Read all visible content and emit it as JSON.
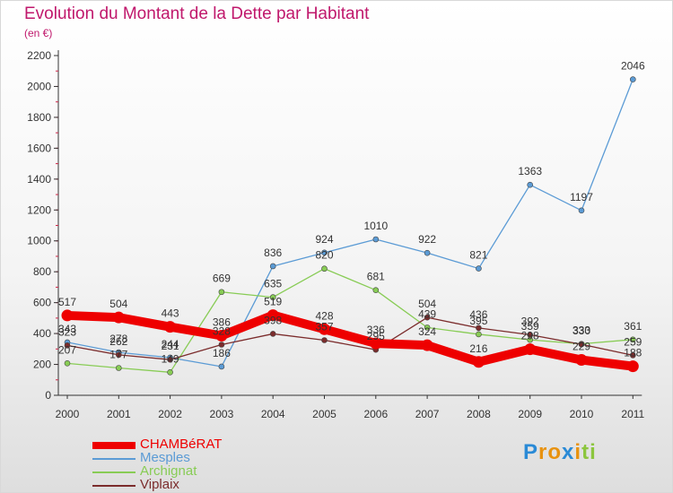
{
  "title": "Evolution du Montant de la Dette par Habitant",
  "subtitle": "(en €)",
  "brand": {
    "text": "Proxiti",
    "letters": [
      {
        "ch": "P",
        "color": "#2a8ad6"
      },
      {
        "ch": "r",
        "color": "#e8920f"
      },
      {
        "ch": "o",
        "color": "#e8920f"
      },
      {
        "ch": "x",
        "color": "#2a8ad6"
      },
      {
        "ch": "i",
        "color": "#e8920f"
      },
      {
        "ch": "t",
        "color": "#8cc63e"
      },
      {
        "ch": "i",
        "color": "#8cc63e"
      }
    ]
  },
  "colors": {
    "title": "#c0186c",
    "axis": "#333333",
    "grid": "#cc2244"
  },
  "chart_data": {
    "type": "line",
    "title": "Evolution du Montant de la Dette par Habitant",
    "subtitle": "(en €)",
    "x": [
      "2000",
      "2001",
      "2002",
      "2003",
      "2004",
      "2005",
      "2006",
      "2007",
      "2008",
      "2009",
      "2010",
      "2011"
    ],
    "ylim": [
      0,
      2200
    ],
    "yticks": [
      0,
      200,
      400,
      600,
      800,
      1000,
      1200,
      1400,
      1600,
      1800,
      2000,
      2200
    ],
    "grid": false,
    "legend_position": "bottom-left",
    "series": [
      {
        "name": "CHAMBéRAT",
        "color": "#ee0000",
        "width": "thick",
        "values": [
          517,
          504,
          443,
          386,
          519,
          428,
          336,
          324,
          216,
          298,
          229,
          188
        ]
      },
      {
        "name": "Mesples",
        "color": "#5b9bd5",
        "width": "thin",
        "values": [
          343,
          278,
          244,
          186,
          836,
          924,
          1010,
          922,
          821,
          1363,
          1197,
          2046
        ]
      },
      {
        "name": "Archignat",
        "color": "#88cc55",
        "width": "thin",
        "values": [
          207,
          177,
          149,
          669,
          635,
          820,
          681,
          439,
          395,
          359,
          333,
          361
        ]
      },
      {
        "name": "Viplaix",
        "color": "#7b2c2c",
        "width": "thin",
        "values": [
          323,
          262,
          231,
          328,
          398,
          357,
          295,
          504,
          436,
          392,
          330,
          259
        ]
      }
    ]
  }
}
